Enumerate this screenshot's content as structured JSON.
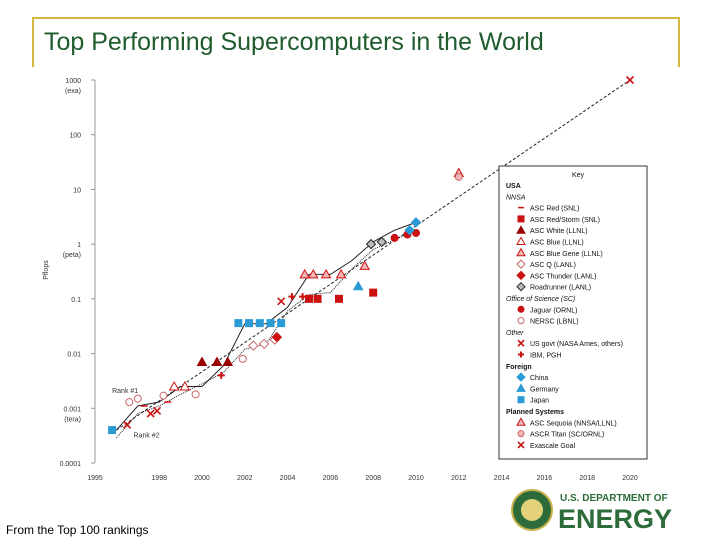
{
  "slide": {
    "title": "Top Performing Supercomputers in the World",
    "footnote": "From the Top 100 rankings"
  },
  "logo": {
    "line1": "U.S. DEPARTMENT OF",
    "line2": "ENERGY"
  },
  "colors": {
    "title": "#1f5c2e",
    "accent_rule": "#d6b640",
    "red": "#cc1111",
    "dark_red": "#990000",
    "pink": "#e8a0a0",
    "blue": "#2a9bd5",
    "gray": "#999999"
  },
  "chart_data": {
    "type": "scatter",
    "y_scale": "log",
    "ylabel": "Pflops",
    "xlim": [
      1995,
      2020
    ],
    "ylim": [
      0.0001,
      1000
    ],
    "x_ticks": [
      "1995",
      "1998",
      "2000",
      "2002",
      "2004",
      "2006",
      "2008",
      "2010",
      "2012",
      "2014",
      "2016",
      "2018",
      "2020"
    ],
    "y_ticks": [
      {
        "v": 1000,
        "label": "1000",
        "sub": "(exa)"
      },
      {
        "v": 100,
        "label": "100",
        "sub": ""
      },
      {
        "v": 10,
        "label": "10",
        "sub": ""
      },
      {
        "v": 1,
        "label": "1",
        "sub": "(peta)"
      },
      {
        "v": 0.1,
        "label": "0.1",
        "sub": ""
      },
      {
        "v": 0.01,
        "label": "0.01",
        "sub": ""
      },
      {
        "v": 0.001,
        "label": "0.001",
        "sub": "(tera)"
      },
      {
        "v": 0.0001,
        "label": "0.0001",
        "sub": ""
      }
    ],
    "annotations": [
      {
        "text": "Rank #1",
        "x": 1995.8,
        "y": 0.0019
      },
      {
        "text": "Rank #2",
        "x": 1996.8,
        "y": 0.00029
      }
    ],
    "trend": {
      "x": [
        1996,
        2020
      ],
      "y": [
        0.0004,
        1000
      ]
    },
    "rank1": {
      "x": [
        1996,
        1997,
        1998,
        1999,
        2000,
        2001,
        2002,
        2003,
        2004,
        2005,
        2006,
        2007,
        2008,
        2009,
        2010
      ],
      "y": [
        0.0004,
        0.0011,
        0.0013,
        0.0025,
        0.0025,
        0.006,
        0.035,
        0.035,
        0.07,
        0.28,
        0.28,
        0.5,
        1.1,
        1.8,
        2.5
      ]
    },
    "rank2": {
      "x": [
        1996,
        1997,
        1998,
        1999,
        2000,
        2001,
        2002,
        2003,
        2004,
        2005,
        2006,
        2007,
        2008,
        2009,
        2010
      ],
      "y": [
        0.00029,
        0.0008,
        0.0011,
        0.0018,
        0.0028,
        0.0045,
        0.012,
        0.015,
        0.06,
        0.12,
        0.13,
        0.35,
        0.8,
        1.2,
        1.8
      ]
    },
    "series": [
      {
        "name": "ASC Red (SNL)",
        "shape": "dash",
        "color": "#cc1111",
        "points": [
          [
            1997.3,
            0.0011
          ],
          [
            1998.4,
            0.0013
          ]
        ]
      },
      {
        "name": "ASC Red/Storm (SNL)",
        "shape": "square",
        "color": "#cc1111",
        "points": [
          [
            2005.0,
            0.1
          ],
          [
            2005.4,
            0.1
          ],
          [
            2006.4,
            0.1
          ],
          [
            2008.0,
            0.13
          ]
        ]
      },
      {
        "name": "ASC White (LLNL)",
        "shape": "triangle",
        "color": "#990000",
        "points": [
          [
            2000.0,
            0.007
          ],
          [
            2000.7,
            0.007
          ],
          [
            2001.2,
            0.007
          ]
        ]
      },
      {
        "name": "ASC Blue (LLNL)",
        "shape": "triangle-open",
        "color": "#cc1111",
        "points": [
          [
            1998.7,
            0.0025
          ],
          [
            1999.2,
            0.0025
          ]
        ]
      },
      {
        "name": "ASC Blue Gene (LLNL)",
        "shape": "triangle-pink",
        "color": "#cc1111",
        "points": [
          [
            2004.8,
            0.28
          ],
          [
            2005.2,
            0.28
          ],
          [
            2005.8,
            0.28
          ],
          [
            2006.5,
            0.28
          ],
          [
            2007.6,
            0.4
          ]
        ]
      },
      {
        "name": "ASC Q (LANL)",
        "shape": "diamond-open",
        "color": "#cc6666",
        "points": [
          [
            2002.4,
            0.014
          ],
          [
            2002.9,
            0.015
          ],
          [
            2003.4,
            0.018
          ]
        ]
      },
      {
        "name": "ASC Thunder (LANL)",
        "shape": "diamond",
        "color": "#cc1111",
        "points": [
          [
            2003.5,
            0.02
          ]
        ]
      },
      {
        "name": "Roadrunner (LANL)",
        "shape": "diamond-gray",
        "color": "#555555",
        "points": [
          [
            2007.9,
            1.0
          ],
          [
            2008.4,
            1.1
          ]
        ]
      },
      {
        "name": "Jaguar (ORNL)",
        "shape": "circle",
        "color": "#cc1111",
        "points": [
          [
            2009.0,
            1.3
          ],
          [
            2009.6,
            1.5
          ],
          [
            2010.0,
            1.6
          ]
        ]
      },
      {
        "name": "NERSC (LBNL)",
        "shape": "circle-open",
        "color": "#cc6666",
        "points": [
          [
            1996.6,
            0.0013
          ],
          [
            1997.0,
            0.0015
          ],
          [
            1998.2,
            0.0017
          ],
          [
            1999.7,
            0.0018
          ],
          [
            2001.9,
            0.008
          ]
        ]
      },
      {
        "name": "US govt (NASA Ames, others)",
        "shape": "x",
        "color": "#cc1111",
        "points": [
          [
            1996.5,
            0.0005
          ],
          [
            1997.6,
            0.0008
          ],
          [
            1997.9,
            0.0009
          ],
          [
            2003.7,
            0.09
          ]
        ]
      },
      {
        "name": "IBM, PGH",
        "shape": "plus",
        "color": "#cc1111",
        "points": [
          [
            2000.9,
            0.004
          ],
          [
            2004.2,
            0.11
          ],
          [
            2004.7,
            0.11
          ]
        ]
      },
      {
        "name": "China",
        "shape": "diamond-blue",
        "color": "#2a9bd5",
        "points": [
          [
            2009.7,
            1.8
          ],
          [
            2010.0,
            2.5
          ]
        ]
      },
      {
        "name": "Germany",
        "shape": "triangle-blue",
        "color": "#2a9bd5",
        "points": [
          [
            2007.3,
            0.17
          ]
        ]
      },
      {
        "name": "Japan",
        "shape": "square-blue",
        "color": "#2a9bd5",
        "points": [
          [
            1995.8,
            0.0004
          ],
          [
            2001.7,
            0.036
          ],
          [
            2002.2,
            0.036
          ],
          [
            2002.7,
            0.036
          ],
          [
            2003.2,
            0.036
          ],
          [
            2003.7,
            0.036
          ]
        ]
      },
      {
        "name": "ASC Sequoia (NNSA/LLNL)",
        "shape": "triangle-pink",
        "color": "#cc1111",
        "points": [
          [
            2012.0,
            20
          ]
        ]
      },
      {
        "name": "ASCR Titan (SC/ORNL)",
        "shape": "circle-pink",
        "color": "#cc6666",
        "points": [
          [
            2012.0,
            17
          ]
        ]
      },
      {
        "name": "Exascale Goal",
        "shape": "x",
        "color": "#cc1111",
        "points": [
          [
            2020.0,
            1000
          ]
        ]
      }
    ],
    "legend": {
      "title": "Key",
      "groups": [
        {
          "label": "USA",
          "bold": true,
          "items": []
        },
        {
          "label": "NNSA",
          "italic": true,
          "items": [
            "ASC Red (SNL)",
            "ASC Red/Storm (SNL)",
            "ASC White (LLNL)",
            "ASC Blue (LLNL)",
            "ASC Blue Gene (LLNL)",
            "ASC Q (LANL)",
            "ASC Thunder (LANL)",
            "Roadrunner (LANL)"
          ]
        },
        {
          "label": "Office of Science (SC)",
          "italic": true,
          "items": [
            "Jaguar (ORNL)",
            "NERSC (LBNL)"
          ]
        },
        {
          "label": "Other",
          "italic": true,
          "items": [
            "US govt (NASA Ames, others)",
            "IBM, PGH"
          ]
        },
        {
          "label": "Foreign",
          "bold": true,
          "items": [
            "China",
            "Germany",
            "Japan"
          ]
        },
        {
          "label": "Planned Systems",
          "bold": true,
          "items": [
            "ASC Sequoia (NNSA/LLNL)",
            "ASCR Titan (SC/ORNL)"
          ]
        },
        {
          "label": "",
          "items": [
            "Exascale Goal"
          ]
        }
      ]
    }
  }
}
